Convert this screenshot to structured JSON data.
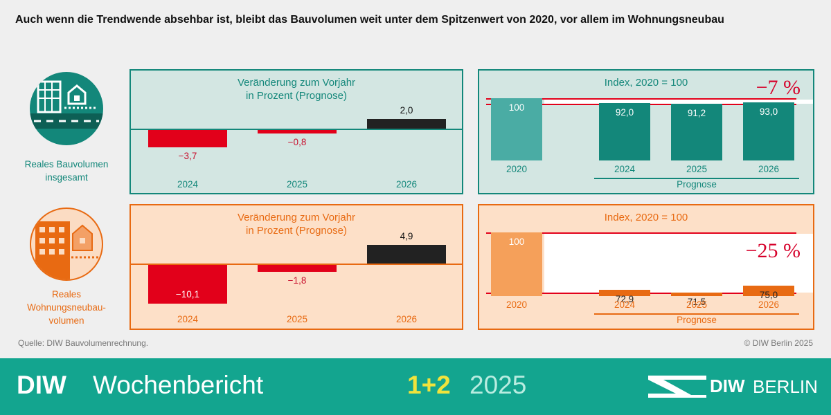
{
  "headline": "Auch wenn die Trendwende absehbar ist, bleibt das Bauvolumen weit unter dem Spitzenwert von 2020, vor allem im Wohnungsneubau",
  "colors": {
    "teal": "#13877a",
    "teal_bg": "#d3e6e2",
    "teal_light": "#4aaca4",
    "orange": "#e86a12",
    "orange_bg": "#fde0c8",
    "orange_light": "#f5a05a",
    "red": "#e2001a",
    "dark": "#222222",
    "text_red": "#c8102e"
  },
  "rows": [
    {
      "label_lines": [
        "Reales Bauvolumen",
        "insgesamt"
      ],
      "icon": "building-house-road-icon",
      "change_panel": {
        "title_lines": [
          "Veränderung zum Vorjahr",
          "in Prozent (Prognose)"
        ]
      },
      "index_panel": {
        "title": "Index, 2020 = 100",
        "reduction_label": "−7 %",
        "prognose_label": "Prognose"
      }
    },
    {
      "label_lines": [
        "Reales",
        "Wohnungsneubau-",
        "volumen"
      ],
      "icon": "apartment-house-icon",
      "change_panel": {
        "title_lines": [
          "Veränderung zum Vorjahr",
          "in Prozent (Prognose)"
        ]
      },
      "index_panel": {
        "title": "Index, 2020 = 100",
        "reduction_label": "−25 %",
        "prognose_label": "Prognose"
      }
    }
  ],
  "chart_data": [
    {
      "type": "bar",
      "title": "Veränderung zum Vorjahr in Prozent (Prognose)",
      "subject": "Reales Bauvolumen insgesamt",
      "categories": [
        "2024",
        "2025",
        "2026"
      ],
      "values": [
        -3.7,
        -0.8,
        2.0
      ],
      "labels": [
        "−3,7",
        "−0,8",
        "2,0"
      ]
    },
    {
      "type": "bar",
      "title": "Index, 2020 = 100",
      "subject": "Reales Bauvolumen insgesamt",
      "categories": [
        "2020",
        "2024",
        "2025",
        "2026"
      ],
      "values": [
        100,
        92.0,
        91.2,
        93.0
      ],
      "labels": [
        "100",
        "92,0",
        "91,2",
        "93,0"
      ],
      "annotation": "−7 %",
      "prognose_years": [
        "2024",
        "2025",
        "2026"
      ]
    },
    {
      "type": "bar",
      "title": "Veränderung zum Vorjahr in Prozent (Prognose)",
      "subject": "Reales Wohnungsneubauvolumen",
      "categories": [
        "2024",
        "2025",
        "2026"
      ],
      "values": [
        -10.1,
        -1.8,
        4.9
      ],
      "labels": [
        "−10,1",
        "−1,8",
        "4,9"
      ]
    },
    {
      "type": "bar",
      "title": "Index, 2020 = 100",
      "subject": "Reales Wohnungsneubauvolumen",
      "categories": [
        "2020",
        "2024",
        "2025",
        "2026"
      ],
      "values": [
        100,
        72.9,
        71.5,
        75.0
      ],
      "labels": [
        "100",
        "72,9",
        "71,5",
        "75,0"
      ],
      "annotation": "−25 %",
      "prognose_years": [
        "2024",
        "2025",
        "2026"
      ]
    }
  ],
  "source": "Quelle: DIW Bauvolumenrechnung.",
  "copyright": "© DIW Berlin 2025",
  "footer": {
    "brand": "DIW",
    "publication": "Wochenbericht",
    "issue": "1+2",
    "year": "2025",
    "logo_text": "DIW",
    "logo_city": "BERLIN"
  }
}
